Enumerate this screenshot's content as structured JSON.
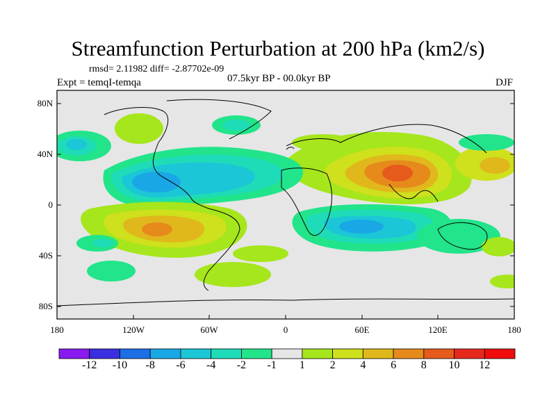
{
  "title": "Streamfunction Perturbation at 200 hPa (km2/s)",
  "stats": "rmsd= 2.11982 diff= -2.87702e-09",
  "experiment": "Expt = temqI-temqa",
  "period": "07.5kyr BP - 00.0kyr BP",
  "season": "DJF",
  "y_ticks": [
    "80N",
    "40N",
    "0",
    "40S",
    "80S"
  ],
  "x_ticks": [
    "180",
    "120W",
    "60W",
    "0",
    "60E",
    "120E",
    "180"
  ],
  "colorbar": {
    "labels": [
      "-12",
      "-10",
      "-8",
      "-6",
      "-4",
      "-2",
      "-1",
      "1",
      "2",
      "4",
      "6",
      "8",
      "10",
      "12"
    ],
    "colors": [
      "#8a1af0",
      "#3a2fe0",
      "#1d6fe6",
      "#1aa7e6",
      "#1bc6d6",
      "#1fdcb8",
      "#22e48a",
      "#e6e6e6",
      "#a6e61c",
      "#cfe01c",
      "#e0b81c",
      "#e68a1c",
      "#e65a1c",
      "#e6281c",
      "#f00c0c"
    ]
  }
}
